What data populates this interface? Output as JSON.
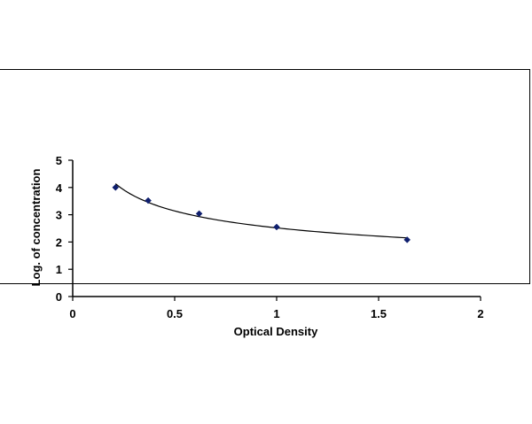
{
  "chart_data": {
    "type": "scatter",
    "title": "",
    "xlabel": "Optical Density",
    "ylabel": "Log. of concentration",
    "xlim": [
      0,
      2
    ],
    "ylim": [
      0,
      5
    ],
    "x_ticks": [
      "0",
      "0.5",
      "1",
      "1.5",
      "2"
    ],
    "y_ticks": [
      "0",
      "1",
      "2",
      "3",
      "4",
      "5"
    ],
    "grid": false,
    "legend": "none",
    "trendline": "power",
    "marker": "diamond",
    "series": [
      {
        "x": [
          0.21,
          0.37,
          0.62,
          1.0,
          1.64
        ],
        "y": [
          4.0,
          3.52,
          3.04,
          2.55,
          2.08
        ]
      }
    ],
    "colors": {
      "marker": "#0f1f6e",
      "line": "#000000",
      "axis": "#000000"
    }
  }
}
